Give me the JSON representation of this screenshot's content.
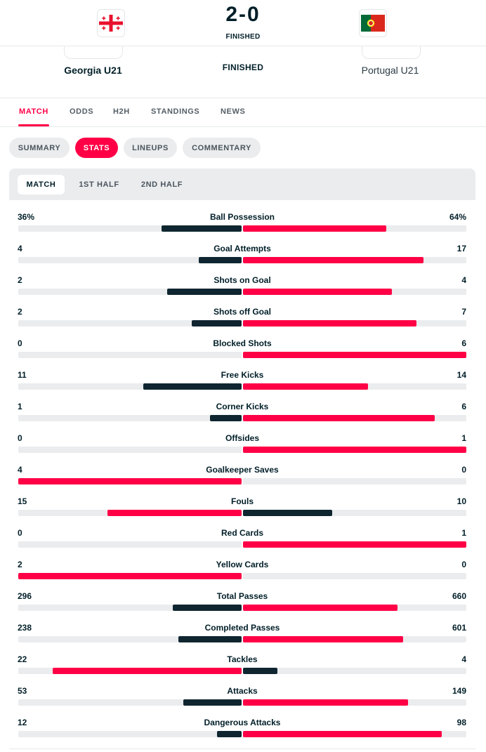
{
  "match": {
    "home_team": "Georgia U21",
    "away_team": "Portugal U21",
    "score": "2-0",
    "status_top": "FINISHED",
    "status_mid": "FINISHED",
    "home_flag": "georgia-flag-icon",
    "away_flag": "portugal-flag-icon"
  },
  "tabs": [
    {
      "label": "MATCH",
      "active": true
    },
    {
      "label": "ODDS",
      "active": false
    },
    {
      "label": "H2H",
      "active": false
    },
    {
      "label": "STANDINGS",
      "active": false
    },
    {
      "label": "NEWS",
      "active": false
    }
  ],
  "subtabs": [
    {
      "label": "SUMMARY",
      "active": false
    },
    {
      "label": "STATS",
      "active": true
    },
    {
      "label": "LINEUPS",
      "active": false
    },
    {
      "label": "COMMENTARY",
      "active": false
    }
  ],
  "period_tabs": [
    {
      "label": "MATCH",
      "active": true
    },
    {
      "label": "1ST HALF",
      "active": false
    },
    {
      "label": "2ND HALF",
      "active": false
    }
  ],
  "colors": {
    "accent": "#ff0046",
    "dark": "#0f2630",
    "track": "#eaecee"
  },
  "stats": [
    {
      "name": "Ball Possession",
      "home": "36%",
      "away": "64%",
      "home_n": 36,
      "away_n": 64
    },
    {
      "name": "Goal Attempts",
      "home": "4",
      "away": "17",
      "home_n": 4,
      "away_n": 17
    },
    {
      "name": "Shots on Goal",
      "home": "2",
      "away": "4",
      "home_n": 2,
      "away_n": 4
    },
    {
      "name": "Shots off Goal",
      "home": "2",
      "away": "7",
      "home_n": 2,
      "away_n": 7
    },
    {
      "name": "Blocked Shots",
      "home": "0",
      "away": "6",
      "home_n": 0,
      "away_n": 6
    },
    {
      "name": "Free Kicks",
      "home": "11",
      "away": "14",
      "home_n": 11,
      "away_n": 14
    },
    {
      "name": "Corner Kicks",
      "home": "1",
      "away": "6",
      "home_n": 1,
      "away_n": 6
    },
    {
      "name": "Offsides",
      "home": "0",
      "away": "1",
      "home_n": 0,
      "away_n": 1
    },
    {
      "name": "Goalkeeper Saves",
      "home": "4",
      "away": "0",
      "home_n": 4,
      "away_n": 0
    },
    {
      "name": "Fouls",
      "home": "15",
      "away": "10",
      "home_n": 15,
      "away_n": 10
    },
    {
      "name": "Red Cards",
      "home": "0",
      "away": "1",
      "home_n": 0,
      "away_n": 1
    },
    {
      "name": "Yellow Cards",
      "home": "2",
      "away": "0",
      "home_n": 2,
      "away_n": 0
    },
    {
      "name": "Total Passes",
      "home": "296",
      "away": "660",
      "home_n": 296,
      "away_n": 660
    },
    {
      "name": "Completed Passes",
      "home": "238",
      "away": "601",
      "home_n": 238,
      "away_n": 601
    },
    {
      "name": "Tackles",
      "home": "22",
      "away": "4",
      "home_n": 22,
      "away_n": 4
    },
    {
      "name": "Attacks",
      "home": "53",
      "away": "149",
      "home_n": 53,
      "away_n": 149
    },
    {
      "name": "Dangerous Attacks",
      "home": "12",
      "away": "98",
      "home_n": 12,
      "away_n": 98
    }
  ]
}
